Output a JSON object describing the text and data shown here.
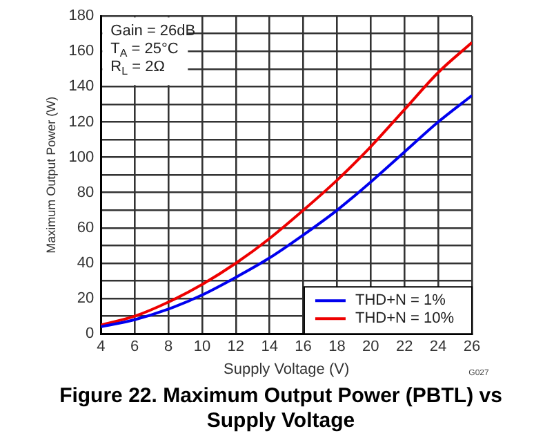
{
  "chart_data": {
    "type": "line",
    "title": "Figure 22. Maximum Output Power (PBTL) vs Supply Voltage",
    "xlabel": "Supply Voltage (V)",
    "ylabel": "Maximum Output Power (W)",
    "x": [
      4,
      6,
      8,
      10,
      12,
      14,
      16,
      18,
      20,
      22,
      24,
      26
    ],
    "series": [
      {
        "name": "THD+N = 1%",
        "color": "#0000ee",
        "values": [
          4,
          8,
          14,
          22,
          32,
          43,
          56,
          70,
          86,
          103,
          120,
          135
        ]
      },
      {
        "name": "THD+N = 10%",
        "color": "#ee0000",
        "values": [
          5,
          10,
          18,
          28,
          40,
          54,
          70,
          87,
          106,
          127,
          148,
          165
        ]
      }
    ],
    "xlim": [
      4,
      26
    ],
    "xticks": [
      4,
      6,
      8,
      10,
      12,
      14,
      16,
      18,
      20,
      22,
      24,
      26
    ],
    "ylim": [
      0,
      180
    ],
    "yticks": [
      0,
      {
        "value": 10,
        "label": null
      },
      20,
      {
        "value": 30,
        "label": null
      },
      40,
      {
        "value": 50,
        "label": null
      },
      60,
      {
        "value": 70,
        "label": null
      },
      80,
      {
        "value": 90,
        "label": null
      },
      100,
      {
        "value": 110,
        "label": null
      },
      120,
      {
        "value": 130,
        "label": null
      },
      140,
      {
        "value": 150,
        "label": null
      },
      160,
      {
        "value": 170,
        "label": null
      },
      180
    ],
    "grid": true,
    "legend": "bottom right",
    "marker": "none",
    "line_style": "solid",
    "annotations": [
      "Gain = 26dB",
      "T$_{A}$ = 25°C",
      "R$_{L}$ = 2Ω",
      "G027"
    ]
  }
}
